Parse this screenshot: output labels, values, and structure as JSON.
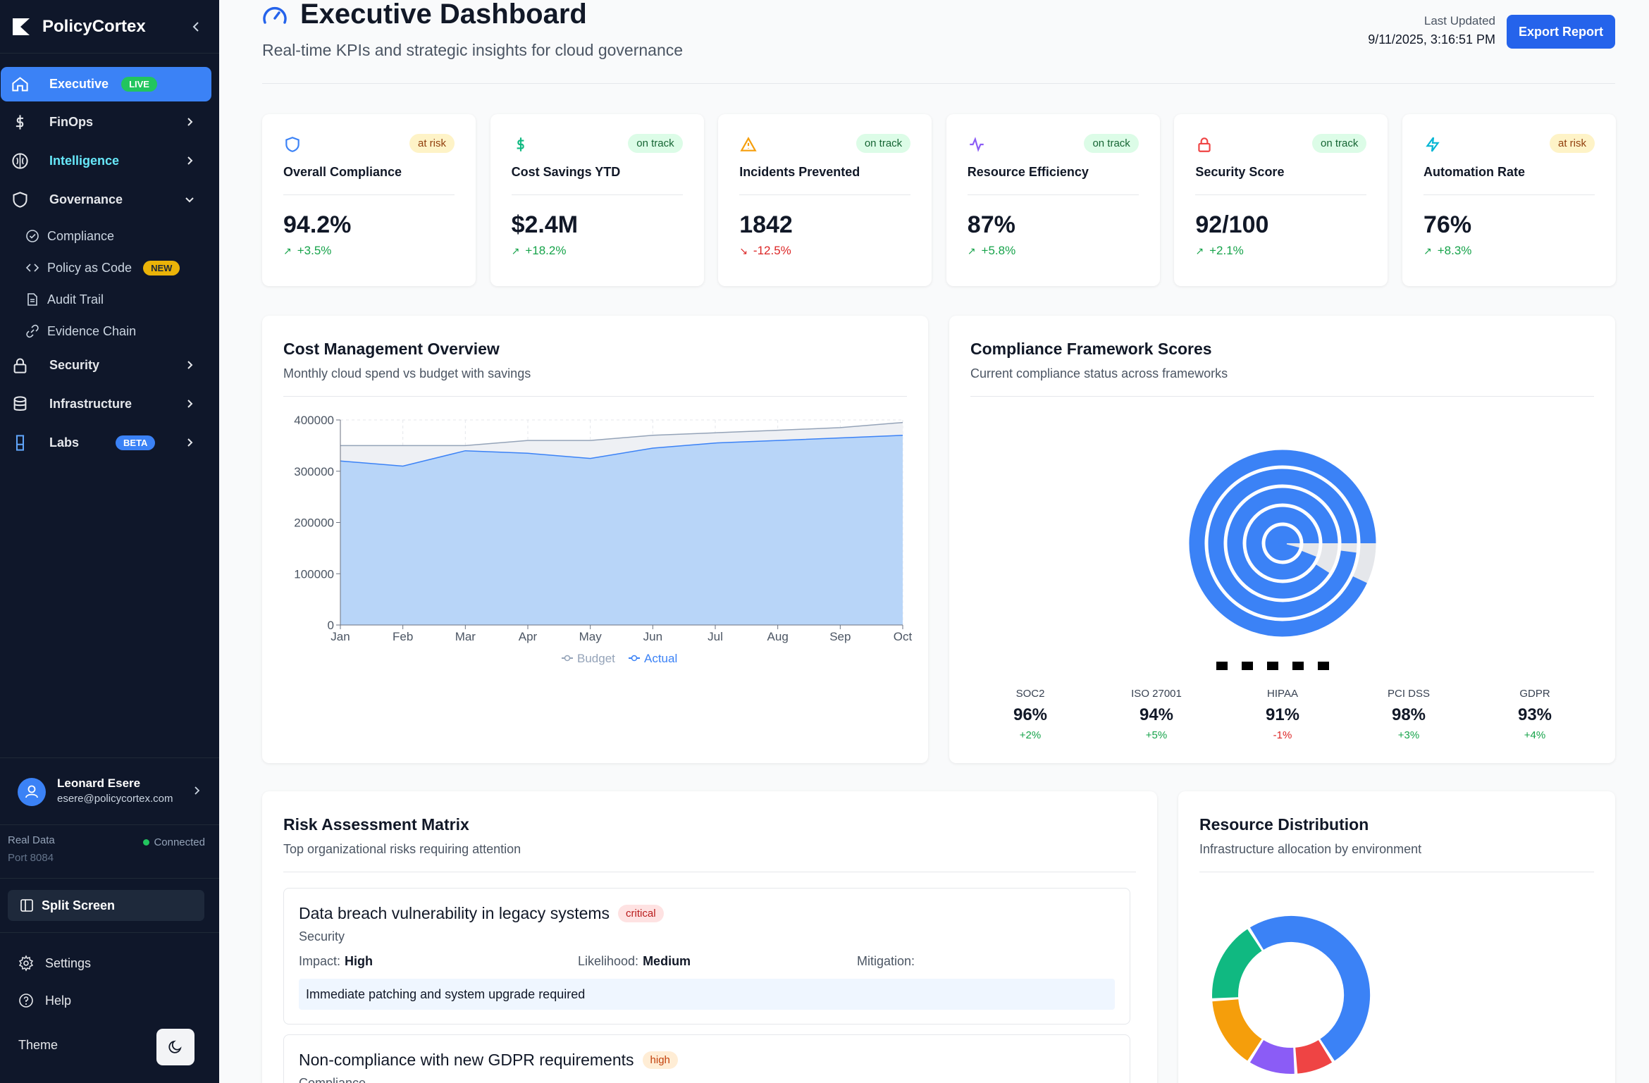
{
  "sidebar": {
    "brand": "PolicyCortex",
    "nav": [
      {
        "label": "Executive",
        "badge": "LIVE"
      },
      {
        "label": "FinOps"
      },
      {
        "label": "Intelligence"
      },
      {
        "label": "Governance"
      },
      {
        "label": "Security"
      },
      {
        "label": "Infrastructure"
      },
      {
        "label": "Labs",
        "badge": "BETA"
      }
    ],
    "governance_sub": [
      {
        "label": "Compliance",
        "icon": "check-circle-icon"
      },
      {
        "label": "Policy as Code",
        "icon": "code-icon",
        "badge": "NEW"
      },
      {
        "label": "Audit Trail",
        "icon": "document-icon"
      },
      {
        "label": "Evidence Chain",
        "icon": "link-icon"
      }
    ],
    "user": {
      "name": "Leonard Esere",
      "email": "esere@policycortex.com"
    },
    "status": {
      "mode": "Real Data",
      "port": "Port 8084",
      "connection": "Connected"
    },
    "split_screen": "Split Screen",
    "settings": "Settings",
    "help": "Help",
    "theme": "Theme"
  },
  "header": {
    "title": "Executive Dashboard",
    "subtitle": "Real-time KPIs and strategic insights for cloud governance",
    "last_updated_label": "Last Updated",
    "last_updated_value": "9/11/2025, 3:16:51 PM",
    "export": "Export Report"
  },
  "kpis": [
    {
      "label": "Overall Compliance",
      "value": "94.2%",
      "change": "+3.5%",
      "direction": "up",
      "status": "at risk",
      "icon": "shield-icon",
      "color": "#3b82f6"
    },
    {
      "label": "Cost Savings YTD",
      "value": "$2.4M",
      "change": "+18.2%",
      "direction": "up",
      "status": "on track",
      "icon": "dollar-icon",
      "color": "#10b981"
    },
    {
      "label": "Incidents Prevented",
      "value": "1842",
      "change": "-12.5%",
      "direction": "down",
      "status": "on track",
      "icon": "warning-icon",
      "color": "#f59e0b"
    },
    {
      "label": "Resource Efficiency",
      "value": "87%",
      "change": "+5.8%",
      "direction": "up",
      "status": "on track",
      "icon": "activity-icon",
      "color": "#8b5cf6"
    },
    {
      "label": "Security Score",
      "value": "92/100",
      "change": "+2.1%",
      "direction": "up",
      "status": "on track",
      "icon": "lock-icon",
      "color": "#ef4444"
    },
    {
      "label": "Automation Rate",
      "value": "76%",
      "change": "+8.3%",
      "direction": "up",
      "status": "at risk",
      "icon": "zap-icon",
      "color": "#06b6d4"
    }
  ],
  "cost_panel": {
    "title": "Cost Management Overview",
    "subtitle": "Monthly cloud spend vs budget with savings"
  },
  "compliance_panel": {
    "title": "Compliance Framework Scores",
    "subtitle": "Current compliance status across frameworks"
  },
  "frameworks": [
    {
      "name": "SOC2",
      "value": "96%",
      "change": "+2%",
      "direction": "up"
    },
    {
      "name": "ISO 27001",
      "value": "94%",
      "change": "+5%",
      "direction": "up"
    },
    {
      "name": "HIPAA",
      "value": "91%",
      "change": "-1%",
      "direction": "down"
    },
    {
      "name": "PCI DSS",
      "value": "98%",
      "change": "+3%",
      "direction": "up"
    },
    {
      "name": "GDPR",
      "value": "93%",
      "change": "+4%",
      "direction": "up"
    }
  ],
  "risk_panel": {
    "title": "Risk Assessment Matrix",
    "subtitle": "Top organizational risks requiring attention"
  },
  "risks": [
    {
      "title": "Data breach vulnerability in legacy systems",
      "severity": "critical",
      "category": "Security",
      "impact_label": "Impact:",
      "impact": "High",
      "likelihood_label": "Likelihood:",
      "likelihood": "Medium",
      "mitigation_label": "Mitigation:",
      "mitigation": "Immediate patching and system upgrade required"
    },
    {
      "title": "Non-compliance with new GDPR requirements",
      "severity": "high",
      "category": "Compliance"
    }
  ],
  "resource_panel": {
    "title": "Resource Distribution",
    "subtitle": "Infrastructure allocation by environment"
  },
  "chart_data": [
    {
      "type": "area",
      "categories": [
        "Jan",
        "Feb",
        "Mar",
        "Apr",
        "May",
        "Jun",
        "Jul",
        "Aug",
        "Sep",
        "Oct"
      ],
      "series": [
        {
          "name": "Budget",
          "values": [
            350000,
            350000,
            350000,
            360000,
            360000,
            370000,
            375000,
            380000,
            385000,
            395000
          ],
          "color": "#94a3b8"
        },
        {
          "name": "Actual",
          "values": [
            320000,
            310000,
            340000,
            335000,
            325000,
            345000,
            355000,
            360000,
            365000,
            370000
          ],
          "color": "#60a5fa"
        }
      ],
      "ylim": [
        0,
        400000
      ],
      "yticks": [
        0,
        100000,
        200000,
        300000,
        400000
      ],
      "legend": "bottom",
      "grid": true
    },
    {
      "type": "radial-bar",
      "categories": [
        "SOC2",
        "ISO 27001",
        "HIPAA",
        "PCI DSS",
        "GDPR"
      ],
      "values": [
        96,
        94,
        91,
        98,
        93
      ],
      "color": "#3b82f6"
    },
    {
      "type": "pie",
      "title": "",
      "slices": [
        {
          "value": 50,
          "color": "#3b82f6"
        },
        {
          "value": 8,
          "color": "#ef4444"
        },
        {
          "value": 10,
          "color": "#8b5cf6"
        },
        {
          "value": 15,
          "color": "#f59e0b"
        },
        {
          "value": 17,
          "color": "#10b981"
        }
      ]
    }
  ]
}
